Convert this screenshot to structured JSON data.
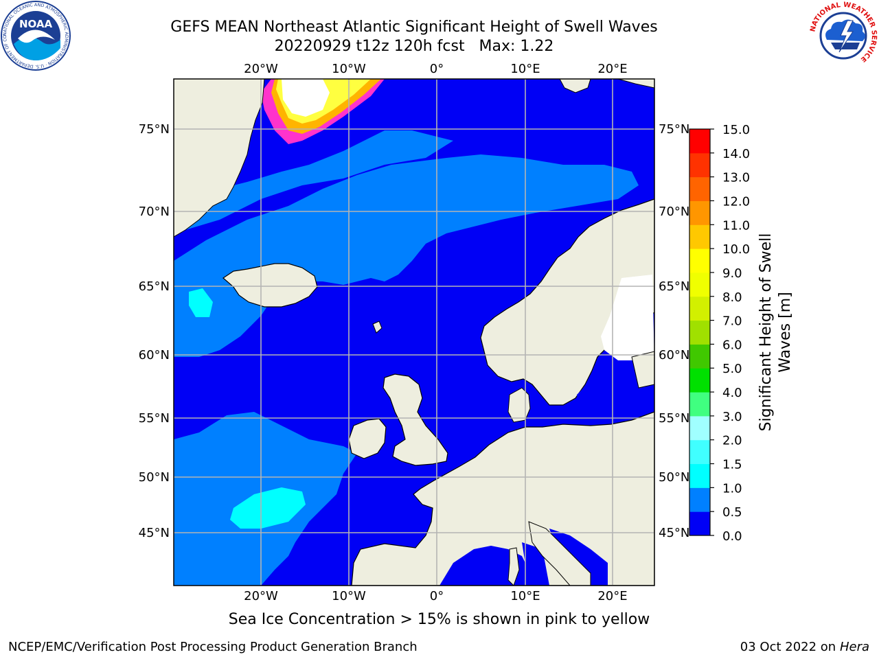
{
  "title": "GEFS MEAN Northeast Atlantic Significant Height of Swell Waves",
  "subtitle": "20220929 t12z 120h fcst   Max: 1.22",
  "map": {
    "lon_labels": [
      "20°W",
      "10°W",
      "0°",
      "10°E",
      "20°E"
    ],
    "lat_labels": [
      "75°N",
      "70°N",
      "65°N",
      "60°N",
      "55°N",
      "50°N",
      "45°N"
    ],
    "colors": {
      "land": "#eeeedf",
      "sea_low": "#0000f5",
      "sea_mid": "#0080ff",
      "sea_cyan": "#00ffff",
      "sea_light_cyan": "#40ffff",
      "ice_pink": "#ff33cc",
      "ice_orange": "#ffb400",
      "ice_yellow": "#ffff40",
      "ice_white": "#ffffff",
      "grid": "#b4b4b4"
    }
  },
  "colorbar": {
    "title_line1": "Significant Height of Swell",
    "title_line2": "Waves [m]",
    "ticks": [
      "0.0",
      "0.5",
      "1.0",
      "1.5",
      "2.0",
      "3.0",
      "4.0",
      "5.0",
      "6.0",
      "7.0",
      "8.0",
      "9.0",
      "10.0",
      "11.0",
      "12.0",
      "13.0",
      "14.0",
      "15.0"
    ],
    "colors": [
      "#0000f5",
      "#0080ff",
      "#00ffff",
      "#40ffff",
      "#a0ffff",
      "#40ff80",
      "#00e000",
      "#40c800",
      "#a0e000",
      "#d2f000",
      "#f0ff00",
      "#ffff00",
      "#ffc800",
      "#ff9600",
      "#ff6400",
      "#ff3200",
      "#ff0000"
    ]
  },
  "note": "Sea Ice Concentration > 15% is shown in pink to yellow",
  "footer": {
    "left": "NCEP/EMC/Verification Post Processing Product Generation Branch",
    "right_prefix": "03 Oct 2022 on ",
    "right_host": "Hera"
  },
  "logos": {
    "noaa": "NOAA",
    "noaa_ring": "NATIONAL OCEANIC AND ATMOSPHERIC ADMINISTRATION · U.S. DEPARTMENT OF COMMERCE",
    "nws_ring": "NATIONAL WEATHER SERVICE"
  }
}
